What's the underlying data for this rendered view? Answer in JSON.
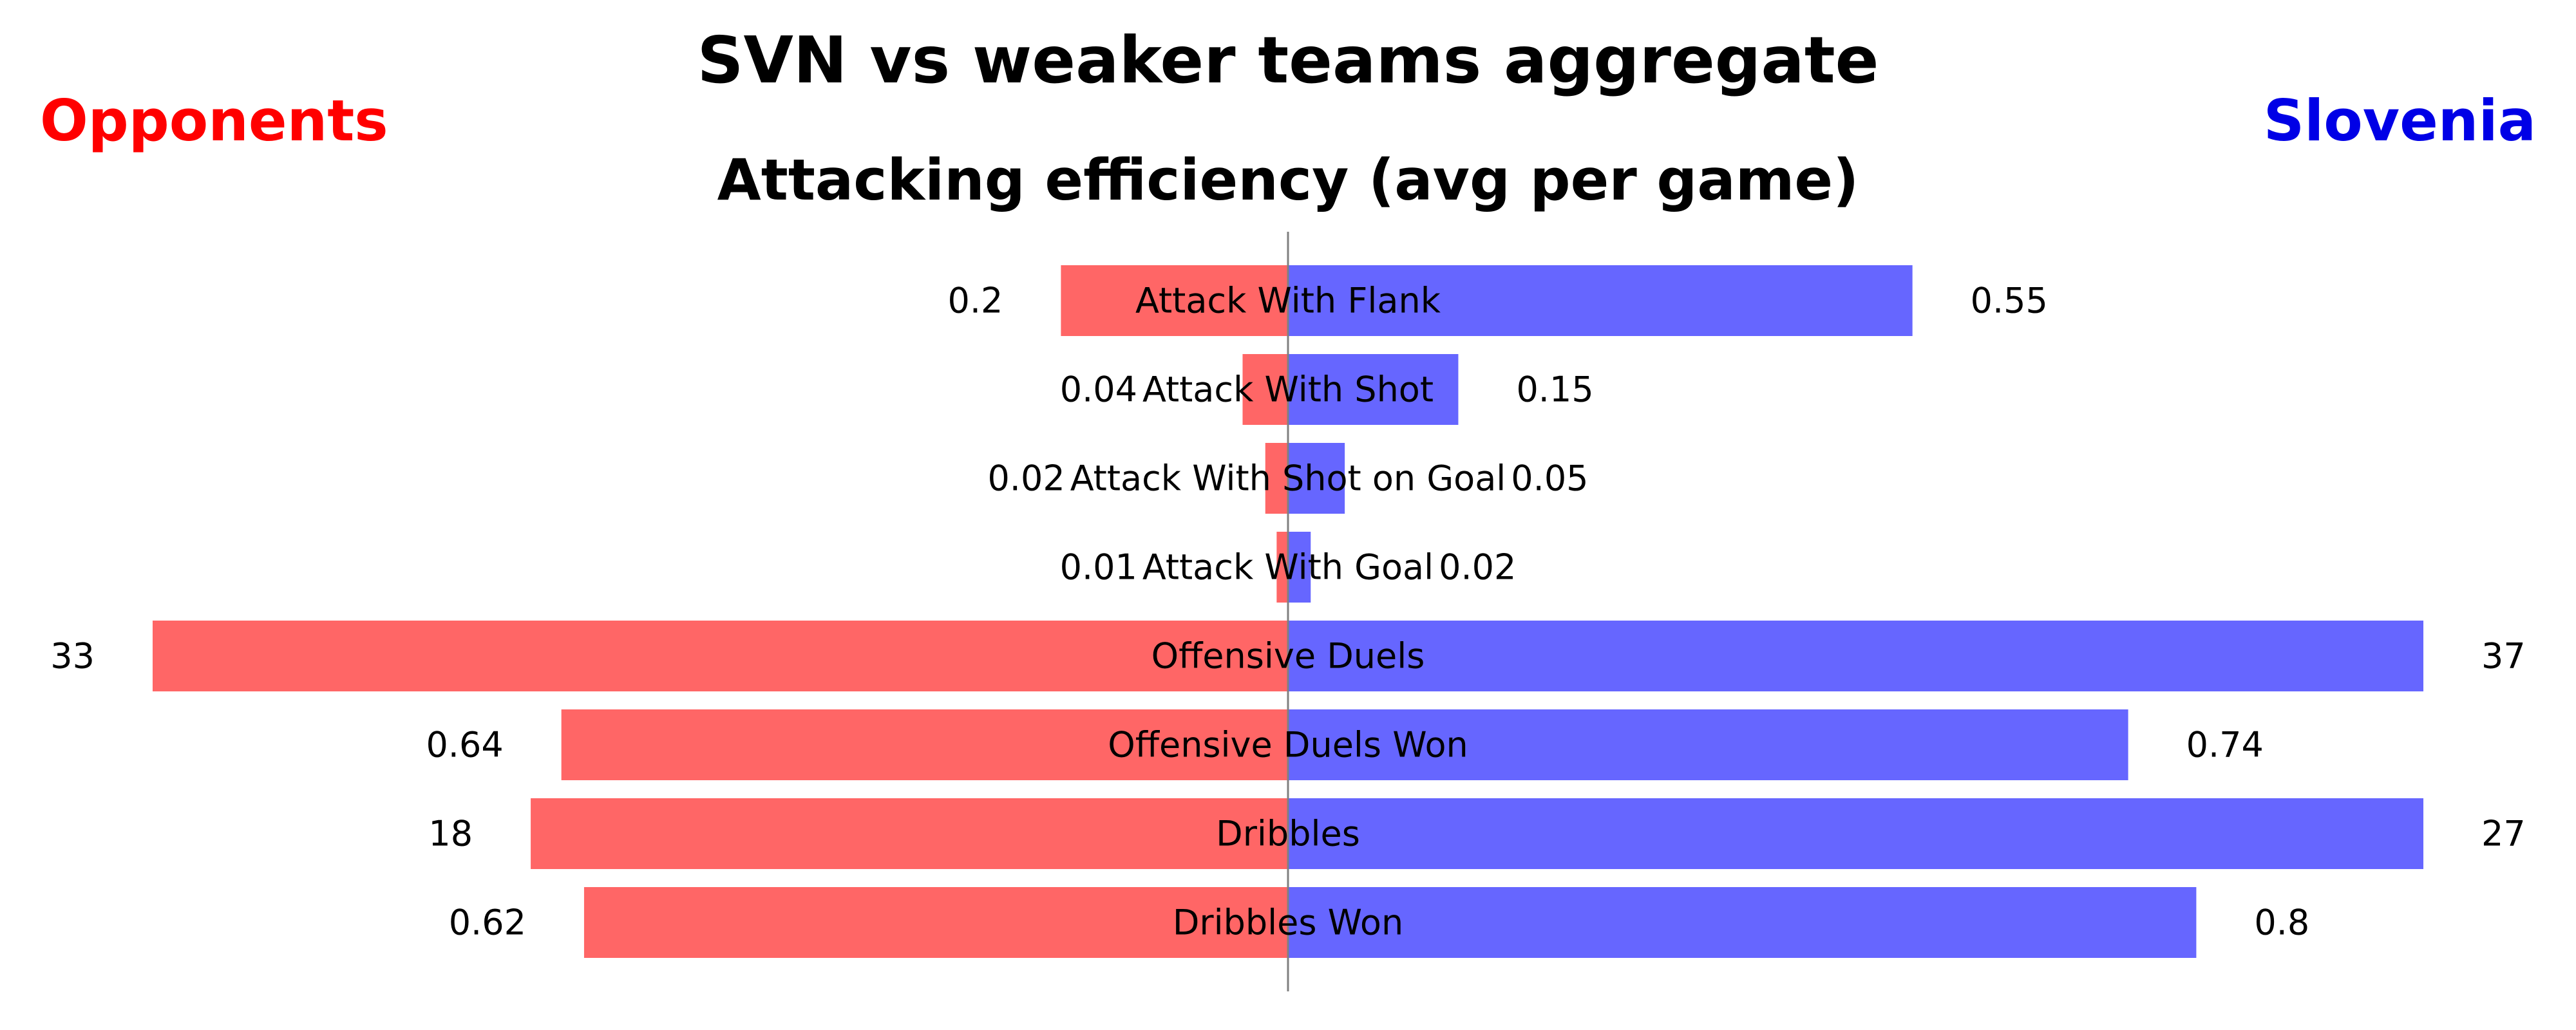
{
  "chart_data": {
    "type": "bar",
    "title": "SVN vs weaker teams aggregate",
    "subtitle": "Attacking efficiency (avg per game)",
    "left_team": "Opponents",
    "right_team": "Slovenia",
    "left_team_color": "#ff0000",
    "right_team_color": "#0000e6",
    "left_bar_color": "#ff6666",
    "right_bar_color": "#6666ff",
    "categories": [
      "Attack With Flank",
      "Attack With Shot",
      "Attack With Shot on Goal",
      "Attack With Goal",
      "Offensive Duels",
      "Offensive Duels Won",
      "Dribbles",
      "Dribbles Won"
    ],
    "series": [
      {
        "name": "Opponents",
        "values": [
          0.2,
          0.04,
          0.02,
          0.01,
          33,
          0.64,
          18,
          0.62
        ],
        "labels": [
          "0.2",
          "0.04",
          "0.02",
          "0.01",
          "33",
          "0.64",
          "18",
          "0.62"
        ]
      },
      {
        "name": "Slovenia",
        "values": [
          0.55,
          0.15,
          0.05,
          0.02,
          37,
          0.74,
          27,
          0.8
        ],
        "labels": [
          "0.55",
          "0.15",
          "0.05",
          "0.02",
          "37",
          "0.74",
          "27",
          "0.8"
        ]
      }
    ],
    "relative_bar_length": {
      "Opponents": [
        0.2,
        0.04,
        0.02,
        0.01,
        1.0,
        0.64,
        0.667,
        0.62
      ],
      "Slovenia": [
        0.55,
        0.15,
        0.05,
        0.02,
        1.0,
        0.74,
        1.0,
        0.8
      ]
    },
    "grid": false,
    "legend": "none"
  }
}
